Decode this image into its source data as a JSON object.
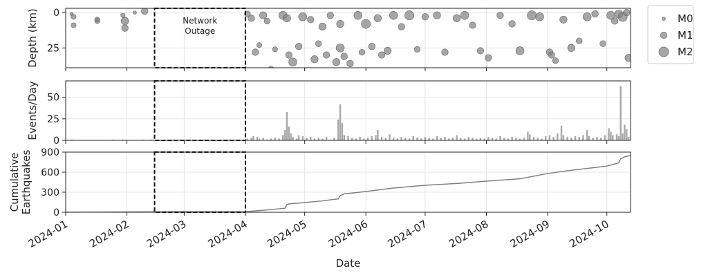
{
  "chart_data": [
    {
      "type": "scatter",
      "ylabel": "Depth (km)",
      "color": "#808080",
      "ylim": [
        39,
        -3
      ],
      "yticks": [
        0,
        25
      ],
      "grid": true,
      "x": [
        3,
        4,
        4,
        16,
        16,
        29,
        30,
        30,
        35,
        40,
        92,
        94,
        96,
        98,
        100,
        102,
        104,
        106,
        110,
        112,
        113,
        115,
        118,
        120,
        124,
        126,
        128,
        130,
        132,
        134,
        137,
        139,
        139,
        141,
        144,
        148,
        150,
        152,
        155,
        158,
        160,
        163,
        166,
        170,
        174,
        178,
        182,
        188,
        192,
        198,
        202,
        206,
        210,
        214,
        220,
        226,
        230,
        236,
        240,
        245,
        246,
        248,
        252,
        256,
        260,
        264,
        268,
        272,
        276,
        278,
        280,
        282,
        284,
        285
      ],
      "y": [
        1,
        3,
        9,
        5,
        6,
        2,
        6,
        11,
        0,
        -1,
        1,
        4,
        28,
        23,
        2,
        6,
        40,
        26,
        2,
        4,
        30,
        35,
        24,
        3,
        5,
        33,
        22,
        10,
        30,
        2,
        35,
        25,
        8,
        31,
        36,
        2,
        28,
        8,
        24,
        4,
        30,
        27,
        2,
        10,
        2,
        26,
        3,
        2,
        28,
        4,
        2,
        9,
        27,
        32,
        2,
        8,
        27,
        2,
        3,
        28,
        30,
        34,
        5,
        25,
        20,
        3,
        1,
        22,
        2,
        6,
        1,
        3,
        0,
        32
      ],
      "size": [
        0,
        0.5,
        0.5,
        0.5,
        0.5,
        0.3,
        1.3,
        1,
        0,
        1,
        0.8,
        1,
        1,
        0.5,
        1.2,
        0.8,
        0.8,
        0.5,
        1.5,
        1.3,
        1,
        1.5,
        1,
        1.5,
        1,
        1.2,
        0.8,
        1.2,
        1,
        1,
        1.2,
        1.5,
        1.2,
        1,
        1,
        1.5,
        0.8,
        1.8,
        1,
        1.2,
        1,
        1.2,
        1.5,
        1,
        1.8,
        0.8,
        1,
        1.2,
        1,
        1.2,
        1.5,
        1,
        1,
        1,
        1,
        1,
        1.5,
        1.8,
        1.5,
        1,
        1,
        0.8,
        1.2,
        1.2,
        0.8,
        1.5,
        1,
        0.8,
        1.5,
        1,
        1.5,
        1.8,
        1,
        1.2
      ],
      "size_legend": [
        {
          "value": 0,
          "label": "M0"
        },
        {
          "value": 1,
          "label": "M1"
        },
        {
          "value": 2,
          "label": "M2"
        }
      ]
    },
    {
      "type": "bar",
      "ylabel": "Events/Day",
      "color": "#a9a9a9",
      "ylim": [
        0,
        69
      ],
      "yticks": [
        0,
        25,
        50
      ],
      "grid": true,
      "x": [
        3,
        24,
        29,
        39,
        43,
        92,
        94,
        95,
        97,
        98,
        100,
        102,
        104,
        106,
        108,
        110,
        111,
        112,
        113,
        114,
        115,
        117,
        118,
        120,
        122,
        124,
        126,
        128,
        130,
        132,
        134,
        136,
        138,
        139,
        140,
        141,
        143,
        145,
        147,
        149,
        151,
        153,
        155,
        157,
        158,
        160,
        162,
        164,
        166,
        168,
        170,
        172,
        174,
        176,
        178,
        180,
        182,
        184,
        186,
        188,
        190,
        192,
        194,
        196,
        198,
        200,
        202,
        204,
        206,
        208,
        210,
        212,
        214,
        216,
        218,
        220,
        222,
        224,
        226,
        228,
        230,
        232,
        234,
        235,
        237,
        239,
        241,
        243,
        245,
        247,
        249,
        251,
        252,
        254,
        256,
        258,
        260,
        262,
        264,
        265,
        267,
        269,
        271,
        273,
        275,
        276,
        277,
        279,
        280,
        281,
        282,
        283,
        284,
        285
      ],
      "values": [
        1,
        1,
        1,
        1,
        1,
        2,
        3,
        5,
        4,
        2,
        3,
        1,
        2,
        3,
        2,
        6,
        12,
        33,
        16,
        8,
        4,
        2,
        6,
        5,
        3,
        4,
        2,
        3,
        2,
        4,
        1,
        3,
        24,
        42,
        20,
        6,
        5,
        3,
        2,
        4,
        2,
        3,
        5,
        6,
        12,
        4,
        3,
        7,
        3,
        2,
        4,
        3,
        2,
        5,
        3,
        2,
        4,
        3,
        2,
        5,
        3,
        4,
        2,
        3,
        6,
        3,
        2,
        4,
        3,
        2,
        3,
        2,
        4,
        3,
        2,
        5,
        3,
        2,
        4,
        3,
        2,
        3,
        10,
        7,
        4,
        3,
        2,
        5,
        6,
        4,
        8,
        17,
        6,
        4,
        3,
        5,
        4,
        6,
        12,
        5,
        3,
        4,
        3,
        6,
        14,
        10,
        6,
        7,
        5,
        63,
        8,
        18,
        13,
        4
      ]
    },
    {
      "type": "line",
      "ylabel": [
        "Cumulative",
        "Earthquakes"
      ],
      "xlabel": "Date",
      "color": "#808080",
      "ylim": [
        0,
        900
      ],
      "yticks": [
        0,
        300,
        600,
        900
      ],
      "grid": true,
      "xlim": [
        0,
        286
      ],
      "xticks": [
        {
          "value": 0,
          "label": "2024-01"
        },
        {
          "value": 31,
          "label": "2024-02"
        },
        {
          "value": 60,
          "label": "2024-03"
        },
        {
          "value": 91,
          "label": "2024-04"
        },
        {
          "value": 121,
          "label": "2024-05"
        },
        {
          "value": 152,
          "label": "2024-06"
        },
        {
          "value": 182,
          "label": "2024-07"
        },
        {
          "value": 213,
          "label": "2024-08"
        },
        {
          "value": 244,
          "label": "2024-09"
        },
        {
          "value": 274,
          "label": "2024-10"
        }
      ],
      "x": [
        0,
        45,
        91,
        100,
        111,
        112,
        113,
        121,
        130,
        138,
        139,
        141,
        152,
        165,
        182,
        200,
        213,
        230,
        244,
        255,
        274,
        280,
        281,
        283,
        286
      ],
      "values": [
        0,
        7,
        8,
        30,
        60,
        115,
        125,
        145,
        170,
        200,
        250,
        275,
        310,
        360,
        403,
        435,
        465,
        500,
        580,
        625,
        690,
        740,
        800,
        830,
        850
      ]
    }
  ],
  "outage": {
    "start": 45,
    "end": 91,
    "label": [
      "Network",
      "Outage"
    ]
  }
}
